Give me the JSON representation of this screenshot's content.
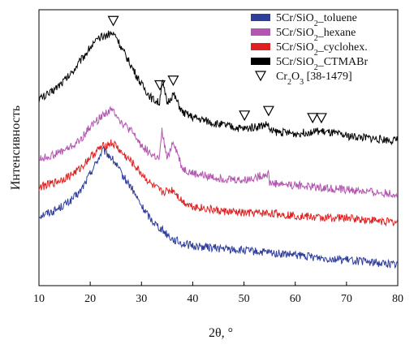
{
  "chart_data": {
    "type": "line",
    "xlabel": "2θ, °",
    "ylabel": "Интенсивность",
    "xlim": [
      10,
      80
    ],
    "x_ticks": [
      10,
      20,
      30,
      40,
      50,
      60,
      70,
      80
    ],
    "y_ticks_shown": false,
    "grid": false,
    "legend_position": "top-right",
    "series": [
      {
        "name_parts": [
          "5Cr/SiO",
          "2",
          "_toluene"
        ],
        "color": "#2f3d9b",
        "x": [
          10,
          13,
          16,
          18,
          20,
          21,
          22,
          22.5,
          23,
          24,
          25,
          26,
          28,
          30,
          32,
          34,
          36,
          38,
          40,
          45,
          50,
          55,
          60,
          65,
          70,
          75,
          80
        ],
        "y": [
          0.18,
          0.2,
          0.24,
          0.28,
          0.36,
          0.4,
          0.44,
          0.46,
          0.45,
          0.43,
          0.4,
          0.36,
          0.3,
          0.22,
          0.16,
          0.12,
          0.08,
          0.06,
          0.05,
          0.04,
          0.03,
          0.02,
          0.01,
          0.0,
          -0.01,
          -0.02,
          -0.03
        ]
      },
      {
        "name_parts": [
          "5Cr/SiO",
          "2",
          "_hexane"
        ],
        "color": "#b356b0",
        "x": [
          10,
          13,
          16,
          18,
          20,
          22,
          23,
          24,
          25,
          26,
          28,
          30,
          32,
          33.5,
          34,
          35,
          36.2,
          38,
          40,
          45,
          50,
          54.8,
          55,
          60,
          65,
          70,
          75,
          80
        ],
        "y": [
          0.42,
          0.44,
          0.47,
          0.5,
          0.56,
          0.6,
          0.62,
          0.63,
          0.62,
          0.58,
          0.54,
          0.48,
          0.44,
          0.42,
          0.54,
          0.42,
          0.5,
          0.38,
          0.36,
          0.34,
          0.33,
          0.36,
          0.32,
          0.31,
          0.3,
          0.29,
          0.28,
          0.27
        ]
      },
      {
        "name_parts": [
          "5Cr/SiO",
          "2",
          "_cyclohex."
        ],
        "color": "#e02020",
        "x": [
          10,
          13,
          16,
          18,
          20,
          22,
          23,
          24,
          25,
          26,
          28,
          30,
          32,
          34,
          36.2,
          38,
          40,
          45,
          50,
          55,
          60,
          65,
          70,
          75,
          80
        ],
        "y": [
          0.3,
          0.32,
          0.35,
          0.38,
          0.43,
          0.47,
          0.48,
          0.49,
          0.48,
          0.45,
          0.41,
          0.36,
          0.31,
          0.28,
          0.29,
          0.24,
          0.22,
          0.2,
          0.19,
          0.19,
          0.18,
          0.17,
          0.17,
          0.16,
          0.15
        ]
      },
      {
        "name_parts": [
          "5Cr/SiO",
          "2",
          "_CTMABr"
        ],
        "color": "#000000",
        "x": [
          10,
          12,
          14,
          16,
          18,
          20,
          22,
          23,
          24,
          25,
          26,
          28,
          30,
          32,
          33.5,
          34,
          35,
          36.2,
          38,
          40,
          45,
          50,
          54.8,
          55,
          60,
          63.4,
          65,
          70,
          75,
          80
        ],
        "y": [
          0.68,
          0.7,
          0.74,
          0.78,
          0.84,
          0.9,
          0.94,
          0.95,
          0.96,
          0.95,
          0.9,
          0.82,
          0.74,
          0.68,
          0.66,
          0.76,
          0.66,
          0.7,
          0.62,
          0.6,
          0.57,
          0.55,
          0.57,
          0.54,
          0.53,
          0.54,
          0.54,
          0.52,
          0.51,
          0.5
        ]
      }
    ],
    "reference": {
      "name_parts": [
        "Cr",
        "2",
        "O",
        "3",
        " [38-1479]"
      ],
      "marker": "open-triangle-down",
      "positions": [
        24.5,
        33.6,
        36.2,
        50.1,
        54.8,
        63.4,
        65.1
      ]
    }
  }
}
